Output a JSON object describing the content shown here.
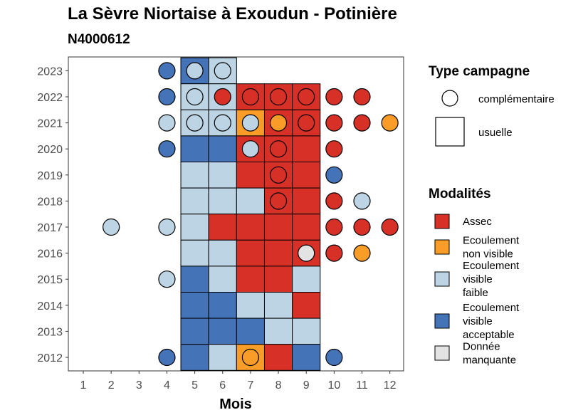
{
  "chart_data": {
    "type": "heatmap",
    "title": "La Sèvre Niortaise à Exoudun - Potinière",
    "subtitle": "N4000612",
    "xlabel": "Mois",
    "ylabel": "",
    "x_ticks": [
      1,
      2,
      3,
      4,
      5,
      6,
      7,
      8,
      9,
      10,
      11,
      12
    ],
    "y_ticks": [
      2012,
      2013,
      2014,
      2015,
      2016,
      2017,
      2018,
      2019,
      2020,
      2021,
      2022,
      2023
    ],
    "grid": false,
    "legends": {
      "campaign_title": "Type campagne",
      "campaign_entries": [
        {
          "key": "complementaire",
          "label": "complémentaire",
          "shape": "circle"
        },
        {
          "key": "usuelle",
          "label": "usuelle",
          "shape": "square"
        }
      ],
      "modalities_title": "Modalités",
      "modalities_entries": [
        {
          "key": "assec",
          "lines": [
            "Assec"
          ],
          "color": "#d73027"
        },
        {
          "key": "nonvisible",
          "lines": [
            "Ecoulement",
            "non visible"
          ],
          "color": "#f99d28"
        },
        {
          "key": "faible",
          "lines": [
            "Ecoulement",
            "visible",
            "faible"
          ],
          "color": "#bcd4e4"
        },
        {
          "key": "acceptable",
          "lines": [
            "Ecoulement",
            "visible",
            "acceptable"
          ],
          "color": "#4473b8"
        },
        {
          "key": "manquante",
          "lines": [
            "Donnée",
            "manquante"
          ],
          "color": "#e3e3e3"
        }
      ]
    },
    "usuelle": [
      {
        "year": 2023,
        "month": 5,
        "value": "acceptable"
      },
      {
        "year": 2023,
        "month": 6,
        "value": "faible"
      },
      {
        "year": 2022,
        "month": 5,
        "value": "faible"
      },
      {
        "year": 2022,
        "month": 6,
        "value": "faible"
      },
      {
        "year": 2022,
        "month": 7,
        "value": "assec"
      },
      {
        "year": 2022,
        "month": 8,
        "value": "assec"
      },
      {
        "year": 2022,
        "month": 9,
        "value": "assec"
      },
      {
        "year": 2021,
        "month": 5,
        "value": "faible"
      },
      {
        "year": 2021,
        "month": 6,
        "value": "faible"
      },
      {
        "year": 2021,
        "month": 7,
        "value": "nonvisible"
      },
      {
        "year": 2021,
        "month": 8,
        "value": "assec"
      },
      {
        "year": 2021,
        "month": 9,
        "value": "assec"
      },
      {
        "year": 2020,
        "month": 5,
        "value": "acceptable"
      },
      {
        "year": 2020,
        "month": 6,
        "value": "acceptable"
      },
      {
        "year": 2020,
        "month": 7,
        "value": "assec"
      },
      {
        "year": 2020,
        "month": 8,
        "value": "assec"
      },
      {
        "year": 2020,
        "month": 9,
        "value": "assec"
      },
      {
        "year": 2019,
        "month": 5,
        "value": "faible"
      },
      {
        "year": 2019,
        "month": 6,
        "value": "faible"
      },
      {
        "year": 2019,
        "month": 7,
        "value": "assec"
      },
      {
        "year": 2019,
        "month": 8,
        "value": "assec"
      },
      {
        "year": 2019,
        "month": 9,
        "value": "assec"
      },
      {
        "year": 2018,
        "month": 5,
        "value": "faible"
      },
      {
        "year": 2018,
        "month": 6,
        "value": "faible"
      },
      {
        "year": 2018,
        "month": 7,
        "value": "faible"
      },
      {
        "year": 2018,
        "month": 8,
        "value": "assec"
      },
      {
        "year": 2018,
        "month": 9,
        "value": "assec"
      },
      {
        "year": 2017,
        "month": 5,
        "value": "faible"
      },
      {
        "year": 2017,
        "month": 6,
        "value": "assec"
      },
      {
        "year": 2017,
        "month": 7,
        "value": "assec"
      },
      {
        "year": 2017,
        "month": 8,
        "value": "assec"
      },
      {
        "year": 2017,
        "month": 9,
        "value": "assec"
      },
      {
        "year": 2016,
        "month": 5,
        "value": "faible"
      },
      {
        "year": 2016,
        "month": 6,
        "value": "faible"
      },
      {
        "year": 2016,
        "month": 7,
        "value": "assec"
      },
      {
        "year": 2016,
        "month": 8,
        "value": "assec"
      },
      {
        "year": 2016,
        "month": 9,
        "value": "assec"
      },
      {
        "year": 2015,
        "month": 5,
        "value": "acceptable"
      },
      {
        "year": 2015,
        "month": 6,
        "value": "faible"
      },
      {
        "year": 2015,
        "month": 7,
        "value": "assec"
      },
      {
        "year": 2015,
        "month": 8,
        "value": "assec"
      },
      {
        "year": 2015,
        "month": 9,
        "value": "faible"
      },
      {
        "year": 2014,
        "month": 5,
        "value": "acceptable"
      },
      {
        "year": 2014,
        "month": 6,
        "value": "acceptable"
      },
      {
        "year": 2014,
        "month": 7,
        "value": "faible"
      },
      {
        "year": 2014,
        "month": 8,
        "value": "faible"
      },
      {
        "year": 2014,
        "month": 9,
        "value": "assec"
      },
      {
        "year": 2013,
        "month": 5,
        "value": "acceptable"
      },
      {
        "year": 2013,
        "month": 6,
        "value": "acceptable"
      },
      {
        "year": 2013,
        "month": 7,
        "value": "acceptable"
      },
      {
        "year": 2013,
        "month": 8,
        "value": "faible"
      },
      {
        "year": 2013,
        "month": 9,
        "value": "faible"
      },
      {
        "year": 2012,
        "month": 5,
        "value": "acceptable"
      },
      {
        "year": 2012,
        "month": 6,
        "value": "faible"
      },
      {
        "year": 2012,
        "month": 7,
        "value": "nonvisible"
      },
      {
        "year": 2012,
        "month": 8,
        "value": "assec"
      },
      {
        "year": 2012,
        "month": 9,
        "value": "acceptable"
      }
    ],
    "complementaire": [
      {
        "year": 2023,
        "month": 4,
        "value": "acceptable"
      },
      {
        "year": 2023,
        "month": 5,
        "value": "faible"
      },
      {
        "year": 2023,
        "month": 6,
        "value": "faible"
      },
      {
        "year": 2022,
        "month": 4,
        "value": "acceptable"
      },
      {
        "year": 2022,
        "month": 5,
        "value": "faible"
      },
      {
        "year": 2022,
        "month": 6,
        "value": "assec"
      },
      {
        "year": 2022,
        "month": 7,
        "value": "assec"
      },
      {
        "year": 2022,
        "month": 8,
        "value": "assec"
      },
      {
        "year": 2022,
        "month": 9,
        "value": "assec"
      },
      {
        "year": 2022,
        "month": 10,
        "value": "assec"
      },
      {
        "year": 2022,
        "month": 11,
        "value": "assec"
      },
      {
        "year": 2021,
        "month": 4,
        "value": "faible"
      },
      {
        "year": 2021,
        "month": 5,
        "value": "faible"
      },
      {
        "year": 2021,
        "month": 6,
        "value": "faible"
      },
      {
        "year": 2021,
        "month": 7,
        "value": "faible"
      },
      {
        "year": 2021,
        "month": 8,
        "value": "nonvisible"
      },
      {
        "year": 2021,
        "month": 9,
        "value": "assec"
      },
      {
        "year": 2021,
        "month": 10,
        "value": "assec"
      },
      {
        "year": 2021,
        "month": 11,
        "value": "assec"
      },
      {
        "year": 2021,
        "month": 12,
        "value": "nonvisible"
      },
      {
        "year": 2020,
        "month": 4,
        "value": "acceptable"
      },
      {
        "year": 2020,
        "month": 7,
        "value": "faible"
      },
      {
        "year": 2020,
        "month": 8,
        "value": "assec"
      },
      {
        "year": 2020,
        "month": 10,
        "value": "assec"
      },
      {
        "year": 2019,
        "month": 8,
        "value": "assec"
      },
      {
        "year": 2019,
        "month": 10,
        "value": "acceptable"
      },
      {
        "year": 2018,
        "month": 8,
        "value": "assec"
      },
      {
        "year": 2018,
        "month": 10,
        "value": "assec"
      },
      {
        "year": 2018,
        "month": 11,
        "value": "faible"
      },
      {
        "year": 2017,
        "month": 2,
        "value": "faible"
      },
      {
        "year": 2017,
        "month": 4,
        "value": "faible"
      },
      {
        "year": 2017,
        "month": 10,
        "value": "assec"
      },
      {
        "year": 2017,
        "month": 11,
        "value": "assec"
      },
      {
        "year": 2017,
        "month": 12,
        "value": "assec"
      },
      {
        "year": 2016,
        "month": 9,
        "value": "manquante"
      },
      {
        "year": 2016,
        "month": 10,
        "value": "assec"
      },
      {
        "year": 2016,
        "month": 11,
        "value": "nonvisible"
      },
      {
        "year": 2015,
        "month": 4,
        "value": "faible"
      },
      {
        "year": 2012,
        "month": 4,
        "value": "acceptable"
      },
      {
        "year": 2012,
        "month": 7,
        "value": "nonvisible"
      },
      {
        "year": 2012,
        "month": 10,
        "value": "acceptable"
      }
    ]
  }
}
